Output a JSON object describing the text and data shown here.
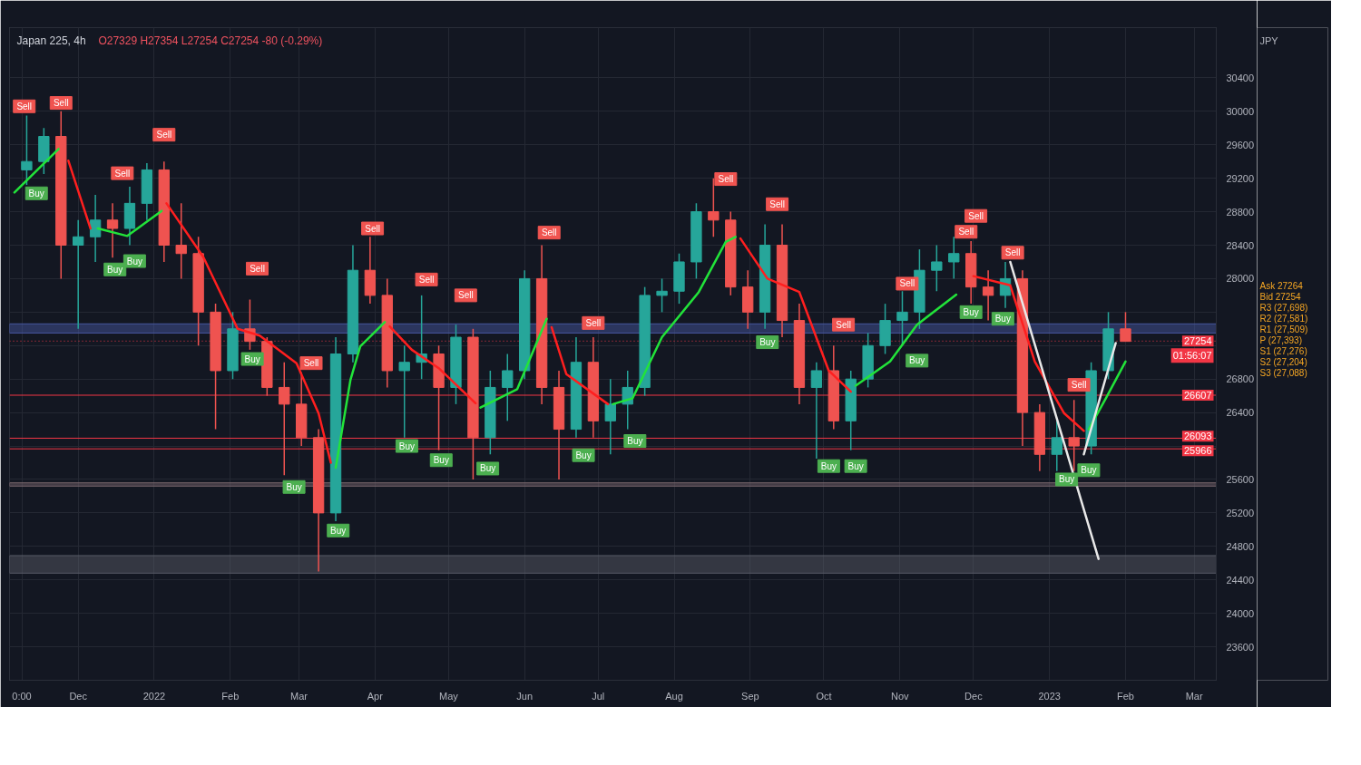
{
  "chart_data": {
    "type": "candlestick",
    "title": "Japan 225, 4h",
    "subtitle": "O27329 H27354 L27254 C27254 -80 (-0.29%)",
    "ylabel": "JPY",
    "x": [
      "2021-11-10",
      "2021-11-17",
      "2021-11-24",
      "2021-12-01",
      "2021-12-08",
      "2021-12-15",
      "2021-12-22",
      "2021-12-29",
      "2022-01-05",
      "2022-01-12",
      "2022-01-19",
      "2022-01-26",
      "2022-02-02",
      "2022-02-09",
      "2022-02-16",
      "2022-02-23",
      "2022-03-02",
      "2022-03-09",
      "2022-03-16",
      "2022-03-23",
      "2022-03-30",
      "2022-04-06",
      "2022-04-13",
      "2022-04-20",
      "2022-04-27",
      "2022-05-04",
      "2022-05-11",
      "2022-05-18",
      "2022-05-25",
      "2022-06-01",
      "2022-06-08",
      "2022-06-15",
      "2022-06-22",
      "2022-06-29",
      "2022-07-06",
      "2022-07-13",
      "2022-07-20",
      "2022-07-27",
      "2022-08-03",
      "2022-08-10",
      "2022-08-17",
      "2022-08-24",
      "2022-08-31",
      "2022-09-07",
      "2022-09-14",
      "2022-09-21",
      "2022-09-28",
      "2022-10-05",
      "2022-10-12",
      "2022-10-19",
      "2022-10-26",
      "2022-11-02",
      "2022-11-09",
      "2022-11-16",
      "2022-11-23",
      "2022-11-30",
      "2022-12-07",
      "2022-12-14",
      "2022-12-21",
      "2022-12-28",
      "2023-01-04",
      "2023-01-11",
      "2023-01-18",
      "2023-01-25",
      "2023-02-01"
    ],
    "ohlc": [
      [
        29300,
        29950,
        29120,
        29400
      ],
      [
        29400,
        29800,
        29250,
        29700
      ],
      [
        29700,
        30000,
        28000,
        28400
      ],
      [
        28400,
        28700,
        27400,
        28500
      ],
      [
        28500,
        29000,
        28200,
        28700
      ],
      [
        28700,
        28900,
        28250,
        28600
      ],
      [
        28600,
        29100,
        28400,
        28900
      ],
      [
        28900,
        29380,
        28700,
        29300
      ],
      [
        29300,
        29400,
        28200,
        28400
      ],
      [
        28400,
        28900,
        28000,
        28300
      ],
      [
        28300,
        28500,
        27200,
        27600
      ],
      [
        27600,
        27700,
        26200,
        26900
      ],
      [
        26900,
        27600,
        26800,
        27400
      ],
      [
        27400,
        27750,
        27150,
        27250
      ],
      [
        27250,
        27300,
        26600,
        26700
      ],
      [
        26700,
        27000,
        25650,
        26500
      ],
      [
        26500,
        26880,
        26000,
        26100
      ],
      [
        26100,
        26200,
        24500,
        25200
      ],
      [
        25200,
        27300,
        25100,
        27100
      ],
      [
        27100,
        28400,
        27000,
        28100
      ],
      [
        28100,
        28500,
        27700,
        27800
      ],
      [
        27800,
        28000,
        26700,
        26900
      ],
      [
        26900,
        27200,
        26100,
        27000
      ],
      [
        27000,
        27800,
        26800,
        27100
      ],
      [
        27100,
        27200,
        25950,
        26700
      ],
      [
        26700,
        27450,
        26500,
        27300
      ],
      [
        27300,
        27400,
        25600,
        26100
      ],
      [
        26100,
        26900,
        25900,
        26700
      ],
      [
        26700,
        27100,
        26300,
        26900
      ],
      [
        26900,
        28100,
        26800,
        28000
      ],
      [
        28000,
        28400,
        26500,
        26700
      ],
      [
        26700,
        26900,
        25600,
        26200
      ],
      [
        26200,
        27300,
        26100,
        27000
      ],
      [
        27000,
        27300,
        26100,
        26300
      ],
      [
        26300,
        26800,
        25900,
        26500
      ],
      [
        26500,
        26900,
        26200,
        26700
      ],
      [
        26700,
        27900,
        26600,
        27800
      ],
      [
        27800,
        28000,
        27600,
        27850
      ],
      [
        27850,
        28300,
        27700,
        28200
      ],
      [
        28200,
        28900,
        28000,
        28800
      ],
      [
        28800,
        29200,
        28500,
        28700
      ],
      [
        28700,
        28800,
        27800,
        27900
      ],
      [
        27900,
        28100,
        27400,
        27600
      ],
      [
        27600,
        28650,
        27400,
        28400
      ],
      [
        28400,
        28650,
        27300,
        27500
      ],
      [
        27500,
        27700,
        26500,
        26700
      ],
      [
        26700,
        27000,
        25850,
        26900
      ],
      [
        26900,
        27200,
        26200,
        26300
      ],
      [
        26300,
        26900,
        25950,
        26800
      ],
      [
        26800,
        27350,
        26700,
        27200
      ],
      [
        27200,
        27700,
        27100,
        27500
      ],
      [
        27500,
        27850,
        27200,
        27600
      ],
      [
        27600,
        28350,
        27400,
        28100
      ],
      [
        28100,
        28400,
        27850,
        28200
      ],
      [
        28200,
        28500,
        28000,
        28300
      ],
      [
        28300,
        28450,
        27700,
        27900
      ],
      [
        27900,
        28100,
        27500,
        27800
      ],
      [
        27800,
        28200,
        27650,
        28000
      ],
      [
        28000,
        28100,
        26000,
        26400
      ],
      [
        26400,
        26500,
        25700,
        25900
      ],
      [
        25900,
        26300,
        25700,
        26100
      ],
      [
        26100,
        26550,
        25700,
        26000
      ],
      [
        26000,
        27000,
        25900,
        26900
      ],
      [
        26900,
        27600,
        26800,
        27400
      ],
      [
        27400,
        27600,
        27250,
        27250
      ]
    ],
    "colors": [
      "#26a69a",
      "#26a69a",
      "#ef5350",
      "#26a69a",
      "#26a69a",
      "#ef5350",
      "#26a69a",
      "#26a69a",
      "#ef5350",
      "#ef5350",
      "#ef5350",
      "#ef5350",
      "#26a69a",
      "#ef5350",
      "#ef5350",
      "#ef5350",
      "#ef5350",
      "#ef5350",
      "#26a69a",
      "#26a69a",
      "#ef5350",
      "#ef5350",
      "#26a69a",
      "#26a69a",
      "#ef5350",
      "#26a69a",
      "#ef5350",
      "#26a69a",
      "#26a69a",
      "#26a69a",
      "#ef5350",
      "#ef5350",
      "#26a69a",
      "#ef5350",
      "#26a69a",
      "#26a69a",
      "#26a69a",
      "#26a69a",
      "#26a69a",
      "#26a69a",
      "#ef5350",
      "#ef5350",
      "#ef5350",
      "#26a69a",
      "#ef5350",
      "#ef5350",
      "#26a69a",
      "#ef5350",
      "#26a69a",
      "#26a69a",
      "#26a69a",
      "#26a69a",
      "#26a69a",
      "#26a69a",
      "#26a69a",
      "#ef5350",
      "#ef5350",
      "#26a69a",
      "#ef5350",
      "#ef5350",
      "#26a69a",
      "#ef5350",
      "#26a69a",
      "#26a69a",
      "#ef5350"
    ],
    "series": [
      {
        "type": "line",
        "color": "#ff1f1f",
        "x": [
          "2021-11-27",
          "2021-12-06",
          "2021-12-07",
          "2022-01-06",
          "2022-01-21",
          "2022-02-04",
          "2022-02-13",
          "2022-02-28",
          "2022-03-09",
          "2022-03-14",
          "2022-03-15",
          "2022-04-07",
          "2022-04-16",
          "2022-04-27",
          "2022-05-12",
          "2022-05-13",
          "2022-06-12",
          "2022-06-18",
          "2022-07-05",
          "2022-07-06",
          "2022-08-28",
          "2022-09-08",
          "2022-09-21",
          "2022-10-03",
          "2022-10-12",
          "2022-10-13",
          "2022-12-01",
          "2022-12-16",
          "2022-12-26",
          "2023-01-07",
          "2023-01-15"
        ],
        "values": [
          29410,
          28600,
          null,
          28900,
          28260,
          27400,
          27320,
          26990,
          26390,
          25800,
          null,
          27430,
          27150,
          26930,
          26510,
          null,
          27420,
          26860,
          26500,
          null,
          28480,
          28000,
          27840,
          26900,
          26650,
          null,
          28030,
          27920,
          27010,
          26390,
          26180
        ]
      },
      {
        "type": "line",
        "color": "#22e33a",
        "x": [
          "2021-11-05",
          "2021-11-14",
          "2021-11-23",
          "2021-11-25",
          "2021-12-09",
          "2021-12-21",
          "2022-01-04",
          "2022-01-05",
          "2022-03-16",
          "2022-03-22",
          "2022-03-26",
          "2022-04-05",
          "2022-04-06",
          "2022-05-14",
          "2022-05-29",
          "2022-06-10",
          "2022-06-11",
          "2022-07-07",
          "2022-07-15",
          "2022-07-27",
          "2022-08-11",
          "2022-08-22",
          "2022-08-26",
          "2022-08-27",
          "2022-10-14",
          "2022-10-28",
          "2022-11-08",
          "2022-11-24",
          "2022-11-25",
          "2023-01-17",
          "2023-01-24",
          "2023-02-01"
        ],
        "values": [
          29030,
          29290,
          29550,
          null,
          28600,
          28510,
          28810,
          null,
          25740,
          26790,
          27190,
          27480,
          null,
          26460,
          26680,
          27520,
          null,
          26500,
          26570,
          27300,
          27840,
          28440,
          28500,
          null,
          26720,
          27010,
          27450,
          27810,
          null,
          26200,
          26570,
          27010
        ]
      },
      {
        "type": "line",
        "color": "#e8e8e8",
        "x": [
          "2022-12-16",
          "2023-01-21"
        ],
        "values": [
          28200,
          24650
        ]
      },
      {
        "type": "line",
        "color": "#e8e8e8",
        "x": [
          "2023-01-15",
          "2023-01-28"
        ],
        "values": [
          25900,
          27230
        ]
      },
      {
        "type": "scatter",
        "color": "#f05450",
        "marker": "square",
        "x": [
          "2021-11-09",
          "2021-11-24",
          "2021-12-19",
          "2022-01-05",
          "2022-02-12",
          "2022-03-06",
          "2022-03-31",
          "2022-04-22",
          "2022-05-08",
          "2022-06-11",
          "2022-06-29",
          "2022-08-22",
          "2022-09-12",
          "2022-10-09",
          "2022-11-04",
          "2022-11-28",
          "2022-12-02",
          "2022-12-17",
          "2023-01-13"
        ],
        "values": [
          30060,
          30100,
          29260,
          29720,
          28120,
          26990,
          28600,
          27990,
          27800,
          28550,
          27470,
          29190,
          28890,
          27450,
          27940,
          28560,
          28750,
          28310,
          26730
        ],
        "value_labels": [
          "Sell",
          "Sell",
          "Sell",
          "Sell",
          "Sell",
          "Sell",
          "Sell",
          "Sell",
          "Sell",
          "Sell",
          "Sell",
          "Sell",
          "Sell",
          "Sell",
          "Sell",
          "Sell",
          "Sell",
          "Sell",
          "Sell"
        ]
      },
      {
        "type": "scatter",
        "color": "#4caf50",
        "marker": "square",
        "x": [
          "2021-11-14",
          "2021-12-16",
          "2021-12-24",
          "2022-02-10",
          "2022-02-27",
          "2022-03-17",
          "2022-04-14",
          "2022-04-28",
          "2022-05-17",
          "2022-06-25",
          "2022-07-16",
          "2022-09-08",
          "2022-10-03",
          "2022-10-14",
          "2022-11-08",
          "2022-11-30",
          "2022-12-13",
          "2023-01-08",
          "2023-01-17"
        ],
        "values": [
          29020,
          28110,
          28210,
          27040,
          25510,
          24990,
          26000,
          25830,
          25730,
          25890,
          26060,
          27240,
          25760,
          25760,
          27020,
          27600,
          27520,
          25600,
          25710
        ],
        "value_labels": [
          "Buy",
          "Buy",
          "Buy",
          "Buy",
          "Buy",
          "Buy",
          "Buy",
          "Buy",
          "Buy",
          "Buy",
          "Buy",
          "Buy",
          "Buy",
          "Buy",
          "Buy",
          "Buy",
          "Buy",
          "Buy",
          "Buy"
        ]
      }
    ],
    "xlim": [
      "2021-11-03",
      "2023-03-10"
    ],
    "xticks": [
      {
        "value": "2021-11-08",
        "label": "0:00"
      },
      {
        "value": "2021-12-01",
        "label": "Dec"
      },
      {
        "value": "2022-01-01",
        "label": "2022"
      },
      {
        "value": "2022-02-01",
        "label": "Feb"
      },
      {
        "value": "2022-03-01",
        "label": "Mar"
      },
      {
        "value": "2022-04-01",
        "label": "Apr"
      },
      {
        "value": "2022-05-01",
        "label": "May"
      },
      {
        "value": "2022-06-01",
        "label": "Jun"
      },
      {
        "value": "2022-07-01",
        "label": "Jul"
      },
      {
        "value": "2022-08-01",
        "label": "Aug"
      },
      {
        "value": "2022-09-01",
        "label": "Sep"
      },
      {
        "value": "2022-10-01",
        "label": "Oct"
      },
      {
        "value": "2022-11-01",
        "label": "Nov"
      },
      {
        "value": "2022-12-01",
        "label": "Dec"
      },
      {
        "value": "2023-01-01",
        "label": "2023"
      },
      {
        "value": "2023-02-01",
        "label": "Feb"
      },
      {
        "value": "2023-03-01",
        "label": "Mar"
      }
    ],
    "ylim": [
      23200,
      31000
    ],
    "yticks": [
      23600,
      24000,
      24400,
      24800,
      25200,
      25600,
      {
        "value": 26000,
        "label": null
      },
      26400,
      26800,
      {
        "value": 27200,
        "label": null
      },
      {
        "value": 27600,
        "label": null
      },
      28000,
      28400,
      28800,
      29200,
      29600,
      30000,
      30400
    ],
    "ref_lines": [
      {
        "axis": "y",
        "value": 27254,
        "label": "27254\n01:56:07",
        "color": "#f23645",
        "line_style": "dotted"
      },
      {
        "axis": "y",
        "value": 26607,
        "label": "26607",
        "color": "#f23645"
      },
      {
        "axis": "y",
        "value": 26093,
        "label": "26093",
        "color": "#f23645"
      },
      {
        "axis": "y",
        "value": 25966,
        "label": "25966",
        "color": "#f23645"
      }
    ],
    "bands": [
      {
        "axis": "y",
        "from": 27350,
        "to": 27460,
        "color": "#4a5ba8"
      },
      {
        "axis": "y",
        "from": 25520,
        "to": 25560,
        "color": "#7d6970"
      },
      {
        "axis": "y",
        "from": 24480,
        "to": 24690,
        "color": "#5d606b"
      }
    ],
    "annotations": [
      "Ask 27264",
      "Bid 27254",
      "R3 (27,698)",
      "R2 (27,581)",
      "R1 (27,509)",
      "P (27,393)",
      "S1 (27,276)",
      "S2 (27,204)",
      "S3 (27,088)"
    ],
    "grid": true
  }
}
